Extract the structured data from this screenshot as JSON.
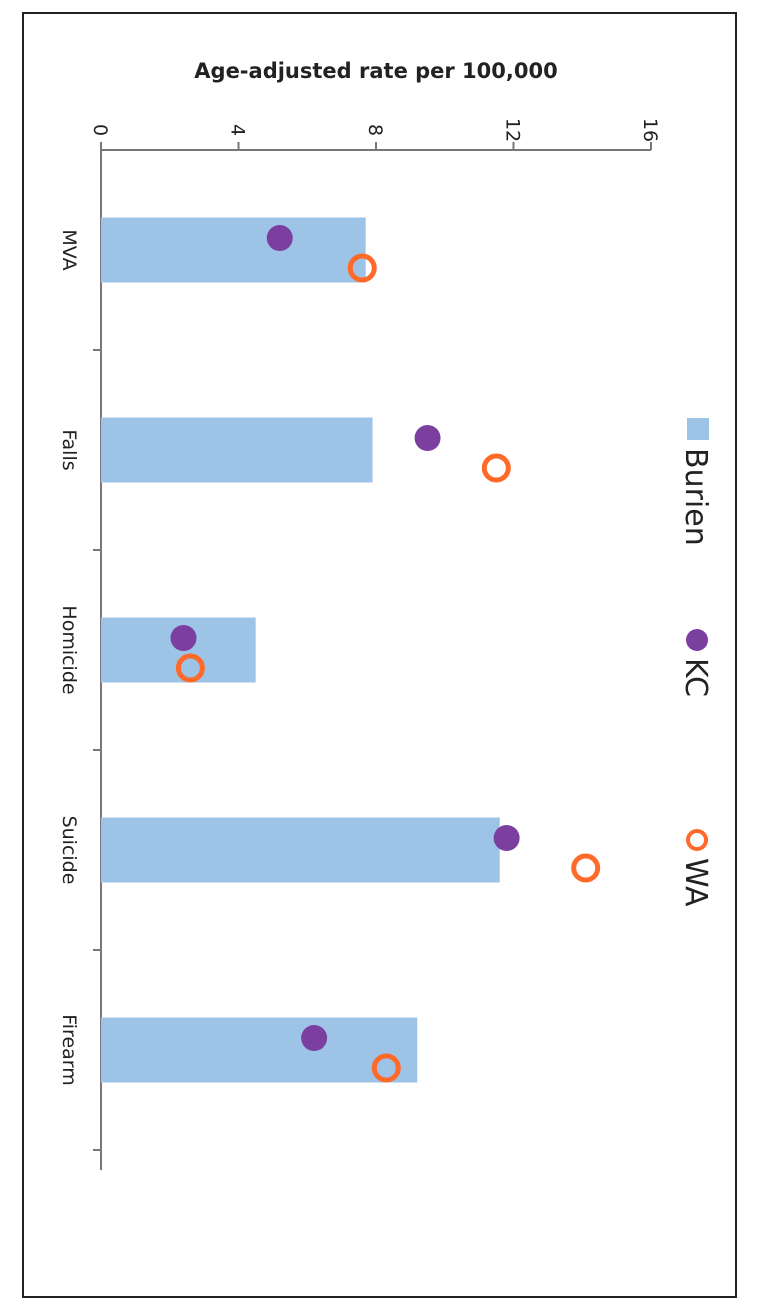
{
  "chart_data": {
    "type": "bar",
    "categories": [
      "MVA",
      "Falls",
      "Homicide",
      "Suicide",
      "Firearm"
    ],
    "ylabel": "Age-adjusted rate per 100,000",
    "ylim": [
      0,
      16
    ],
    "yticks": [
      0,
      4,
      8,
      12,
      16
    ],
    "grid": false,
    "orientation": "rotated 90° clockwise (page shown sideways)",
    "legend_position": "top",
    "series": [
      {
        "name": "Burien",
        "marker": "bar",
        "color": "#9dc3e6",
        "values": [
          7.7,
          7.9,
          4.5,
          11.6,
          9.2
        ]
      },
      {
        "name": "KC",
        "marker": "filled-circle",
        "color": "#7b3fa0",
        "values": [
          5.2,
          9.5,
          2.4,
          11.8,
          6.2
        ]
      },
      {
        "name": "WA",
        "marker": "open-circle",
        "color": "#ff6a2a",
        "values": [
          7.6,
          11.5,
          2.6,
          14.1,
          8.3
        ]
      }
    ]
  }
}
